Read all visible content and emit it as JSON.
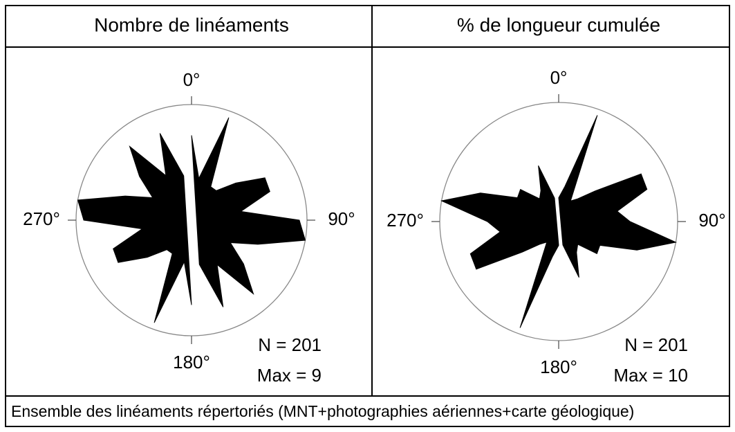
{
  "chart_data": [
    {
      "type": "rose",
      "title": "Nombre de linéaments",
      "angle_labels": [
        "0°",
        "90°",
        "180°",
        "270°"
      ],
      "annotations": [
        "N = 201",
        "Max = 9"
      ],
      "directions": [
        0,
        10,
        20,
        30,
        40,
        50,
        60,
        70,
        80,
        90,
        100,
        110,
        120,
        130,
        140,
        150,
        160,
        170
      ],
      "values": [
        6.6,
        3.3,
        8.5,
        3,
        3,
        4.5,
        6.6,
        6.5,
        3.9,
        8.4,
        9,
        5.5,
        3.5,
        5.3,
        7.5,
        4,
        7.2,
        3.5
      ],
      "rlim": [
        0,
        9
      ],
      "color": "#000000",
      "bidirectional": true
    },
    {
      "type": "rose",
      "title": "% de longueur cumulée",
      "angle_labels": [
        "0°",
        "90°",
        "180°",
        "270°"
      ],
      "annotations": [
        "N = 201",
        "Max = 10"
      ],
      "directions": [
        0,
        10,
        20,
        30,
        40,
        50,
        60,
        70,
        80,
        90,
        100,
        110,
        120,
        130,
        140,
        150,
        160,
        170
      ],
      "values": [
        2,
        3,
        9.5,
        2,
        2.5,
        4,
        8,
        7.9,
        5,
        6,
        10,
        7,
        4,
        4.2,
        2.5,
        3,
        5,
        2
      ],
      "rlim": [
        0,
        10
      ],
      "color": "#000000",
      "bidirectional": true
    }
  ],
  "caption": "Ensemble des linéaments répertoriés (MNT+photographies aériennes+carte géologique)"
}
